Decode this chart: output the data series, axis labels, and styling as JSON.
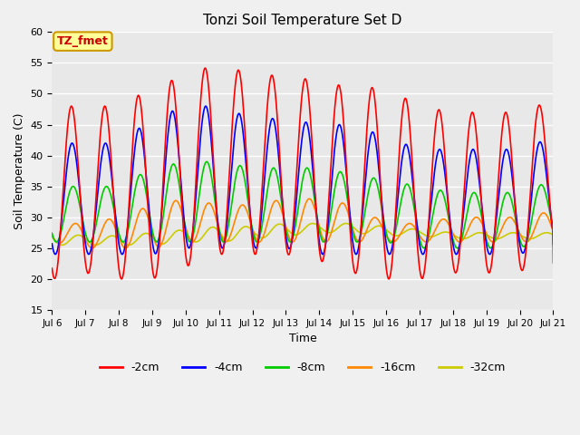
{
  "title": "Tonzi Soil Temperature Set D",
  "xlabel": "Time",
  "ylabel": "Soil Temperature (C)",
  "ylim": [
    15,
    60
  ],
  "legend_labels": [
    "-2cm",
    "-4cm",
    "-8cm",
    "-16cm",
    "-32cm"
  ],
  "legend_colors": [
    "#ff0000",
    "#0000ff",
    "#00cc00",
    "#ff8800",
    "#cccc00"
  ],
  "xtick_labels": [
    "Jul 6",
    "Jul 7",
    "Jul 8",
    "Jul 9",
    "Jul 10",
    "Jul 11",
    "Jul 12",
    "Jul 13",
    "Jul 14",
    "Jul 15",
    "Jul 16",
    "Jul 17",
    "Jul 18",
    "Jul 19",
    "Jul 20",
    "Jul 21"
  ],
  "annotation_text": "TZ_fmet",
  "annotation_color": "#cc0000",
  "annotation_bg": "#ffff99",
  "annotation_border": "#cc9900",
  "yticks": [
    15,
    20,
    25,
    30,
    35,
    40,
    45,
    50,
    55,
    60
  ],
  "line_width": 1.2,
  "n_days": 15,
  "pts_per_day": 96,
  "peak_2cm": [
    48,
    48,
    48,
    51,
    53,
    55,
    53,
    53,
    52,
    51,
    51,
    48,
    47,
    47,
    47,
    49
  ],
  "trough_2cm": [
    20,
    21,
    20,
    20,
    22,
    24,
    24,
    24,
    23,
    21,
    20,
    20,
    21,
    21,
    21,
    26
  ],
  "peak_4cm": [
    42,
    42,
    42,
    46,
    48,
    48,
    46,
    46,
    45,
    45,
    43,
    41,
    41,
    41,
    41,
    43
  ],
  "trough_4cm": [
    24,
    24,
    24,
    24,
    25,
    25,
    25,
    25,
    24,
    24,
    24,
    24,
    24,
    24,
    24,
    26
  ],
  "peak_8cm": [
    35,
    35,
    35,
    38,
    39,
    39,
    38,
    38,
    38,
    37,
    36,
    35,
    34,
    34,
    34,
    36
  ],
  "trough_8cm": [
    26,
    26,
    26,
    26,
    26,
    26,
    26,
    26,
    26,
    26,
    26,
    25,
    25,
    25,
    25,
    27
  ],
  "peak_16cm": [
    29,
    29,
    30,
    32,
    33,
    32,
    32,
    33,
    33,
    32,
    29,
    29,
    30,
    30,
    30,
    31
  ],
  "trough_16cm": [
    26,
    25,
    25,
    25,
    26,
    26,
    26,
    26,
    26,
    26,
    26,
    26,
    26,
    26,
    26,
    26
  ],
  "peak_32cm": [
    27.5,
    27,
    27,
    27.5,
    28,
    28.5,
    28.5,
    29,
    29,
    29,
    28.5,
    28,
    27.5,
    27.5,
    27.5,
    27.5
  ],
  "trough_32cm": [
    25.5,
    25.5,
    25.5,
    25.5,
    26,
    26,
    26.5,
    27,
    27.5,
    27.5,
    27,
    27,
    26.5,
    26.5,
    26.5,
    26.5
  ]
}
